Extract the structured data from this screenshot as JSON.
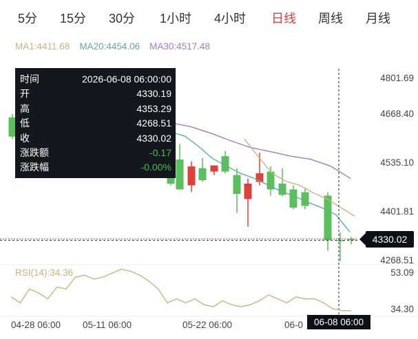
{
  "tabs": [
    {
      "label": "5分"
    },
    {
      "label": "15分"
    },
    {
      "label": "30分"
    },
    {
      "label": "1小时"
    },
    {
      "label": "4小时"
    },
    {
      "label": "日线",
      "active": true
    },
    {
      "label": "周线"
    },
    {
      "label": "月线"
    }
  ],
  "ma_legend": [
    {
      "label": "MA1:4411.68",
      "color": "#c9b380"
    },
    {
      "label": "MA20:4454.06",
      "color": "#5fae9a"
    },
    {
      "label": "MA30:4517.48",
      "color": "#9b7ec7"
    }
  ],
  "tooltip": {
    "rows": [
      {
        "label": "时间",
        "value": "2026-06-08 06:00:00"
      },
      {
        "label": "开",
        "value": "4330.19"
      },
      {
        "label": "高",
        "value": "4353.29"
      },
      {
        "label": "低",
        "value": "4268.51"
      },
      {
        "label": "收",
        "value": "4330.02"
      },
      {
        "label": "涨跌额",
        "value": "-0.17",
        "tone": "green"
      },
      {
        "label": "涨跌幅",
        "value": "-0.00%",
        "tone": "green"
      }
    ]
  },
  "y_axis_price": [
    "4801.69",
    "4668.40",
    "4535.10",
    "4401.81",
    "4268.51"
  ],
  "current_price": "4330.02",
  "rsi": {
    "label": "RSI(14):34.36",
    "axis": [
      "53.09",
      "34.30"
    ]
  },
  "x_axis": [
    "04-28 06:00",
    "05-11 06:00",
    "05-22 06:00",
    "06-0"
  ],
  "crosshair_date": "06-08 06:00",
  "colors": {
    "up": "#e0403a",
    "down": "#5bbf5e",
    "ma1": "#c9b380",
    "ma20": "#5fae9a",
    "ma30": "#9b7ec7",
    "active_tab": "#e0403a"
  },
  "chart_data": {
    "type": "candlestick",
    "price_ticks": [
      4801.69,
      4668.4,
      4535.1,
      4401.81,
      4268.51
    ],
    "rsi_ticks": [
      53.09,
      34.3
    ],
    "candles": [
      {
        "open": 4688,
        "high": 4698,
        "low": 4625,
        "close": 4632
      },
      {
        "open": 4548,
        "high": 4598,
        "low": 4490,
        "close": 4495
      },
      {
        "open": 4565,
        "high": 4610,
        "low": 4482,
        "close": 4478
      },
      {
        "open": 4490,
        "high": 4560,
        "low": 4470,
        "close": 4545
      },
      {
        "open": 4540,
        "high": 4570,
        "low": 4500,
        "close": 4505
      },
      {
        "open": 4530,
        "high": 4548,
        "low": 4520,
        "close": 4548
      },
      {
        "open": 4575,
        "high": 4590,
        "low": 4525,
        "close": 4530
      },
      {
        "open": 4520,
        "high": 4540,
        "low": 4410,
        "close": 4465
      },
      {
        "open": 4450,
        "high": 4510,
        "low": 4370,
        "close": 4495
      },
      {
        "open": 4500,
        "high": 4585,
        "low": 4490,
        "close": 4525
      },
      {
        "open": 4530,
        "high": 4545,
        "low": 4460,
        "close": 4478
      },
      {
        "open": 4495,
        "high": 4540,
        "low": 4458,
        "close": 4462
      },
      {
        "open": 4478,
        "high": 4490,
        "low": 4420,
        "close": 4425
      },
      {
        "open": 4470,
        "high": 4480,
        "low": 4420,
        "close": 4430
      },
      {
        "open": 4460,
        "high": 4470,
        "low": 4300,
        "close": 4330
      },
      {
        "open": 4330.19,
        "high": 4353.29,
        "low": 4268.51,
        "close": 4330.02
      },
      {
        "open": 4333,
        "high": 4340,
        "low": 4318,
        "close": 4330
      }
    ],
    "ma20": [
      4645,
      4634,
      4604,
      4569,
      4547,
      4526,
      4511,
      4492,
      4473,
      4458,
      4440,
      4424,
      4404,
      4354
    ],
    "ma30": [
      4672,
      4661,
      4642,
      4620,
      4600,
      4588,
      4575,
      4566,
      4546,
      4510
    ],
    "ma1": [
      4625,
      4574,
      4525,
      4502,
      4490,
      4468,
      4450,
      4425,
      4400
    ],
    "rsi": [
      41,
      38,
      45,
      43,
      40,
      46,
      45,
      51,
      52,
      50,
      51,
      53,
      55,
      54,
      52,
      49,
      45,
      38,
      40,
      38,
      40,
      37,
      36,
      39,
      37,
      36,
      37,
      39,
      42,
      40,
      38,
      41,
      40,
      40,
      38,
      35,
      34,
      34
    ]
  }
}
